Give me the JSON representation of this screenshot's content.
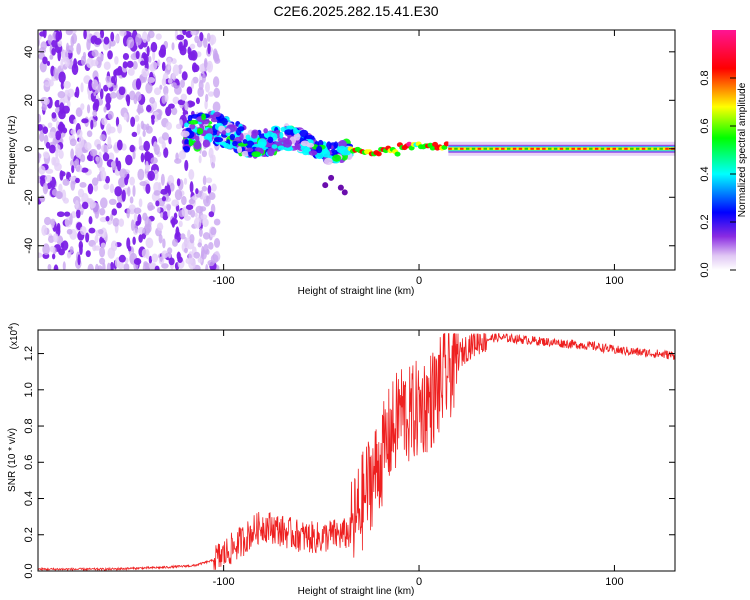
{
  "figure": {
    "title": "C2E6.2025.282.15.41.E30"
  },
  "chart_data": [
    {
      "type": "heatmap",
      "name": "spectrogram",
      "title": "C2E6.2025.282.15.41.E30",
      "xlabel": "Height of straight line (km)",
      "ylabel": "Frequency (Hz)",
      "xlim": [
        -195,
        131
      ],
      "ylim": [
        -50,
        49
      ],
      "xticks": [
        -100,
        0,
        100
      ],
      "yticks": [
        -40,
        -20,
        0,
        20,
        40
      ],
      "colorbar": {
        "label": "Normalized spectral amplitude",
        "range": [
          0,
          1
        ],
        "ticks": [
          0.0,
          0.2,
          0.4,
          0.6,
          0.8
        ],
        "tick_labels": [
          "0.0",
          "0.2",
          "0.4",
          "0.6",
          "0.8"
        ],
        "colormap": [
          "#ffffff",
          "#e2c8f4",
          "#8a2be2",
          "#0000ff",
          "#00ffff",
          "#00ff00",
          "#ffff00",
          "#ff0000",
          "#ff1493"
        ]
      },
      "regions": [
        {
          "description": "scattered low-amplitude noise",
          "x_range": [
            -195,
            -103
          ],
          "y_range": [
            -50,
            49
          ],
          "amplitude": 0.15
        },
        {
          "description": "irregular band around 0 Hz",
          "x_range": [
            -120,
            -35
          ],
          "y_range": [
            -10,
            14
          ],
          "amplitude": 0.45
        },
        {
          "description": "narrow line near 0 Hz",
          "x_range": [
            -35,
            15
          ],
          "y_range": [
            -3,
            3
          ],
          "amplitude": 0.8
        },
        {
          "description": "steady line at 0 Hz",
          "x_range": [
            15,
            131
          ],
          "y_range": [
            -2,
            2
          ],
          "amplitude": 0.95
        }
      ]
    },
    {
      "type": "line",
      "name": "snr",
      "xlabel": "Height of straight line (km)",
      "ylabel": "SNR (10 * v/v)",
      "multiplier_label": "(x10",
      "multiplier_exponent": "4",
      "xlim": [
        -195,
        131
      ],
      "ylim": [
        0,
        1.33
      ],
      "xticks": [
        -100,
        0,
        100
      ],
      "yticks": [
        0.0,
        0.2,
        0.4,
        0.6,
        0.8,
        1.0,
        1.2
      ],
      "ytick_labels": [
        "0.0",
        "0.2",
        "0.4",
        "0.6",
        "0.8",
        "1.0",
        "1.2"
      ],
      "color": "#ee2020",
      "series": [
        {
          "name": "SNR",
          "x": [
            -195,
            -160,
            -130,
            -115,
            -105,
            -100,
            -95,
            -90,
            -85,
            -80,
            -75,
            -70,
            -60,
            -50,
            -45,
            -40,
            -35,
            -30,
            -25,
            -22,
            -20,
            -15,
            -12,
            -10,
            -5,
            0,
            5,
            10,
            15,
            20,
            25,
            30,
            40,
            50,
            60,
            70,
            80,
            90,
            100,
            110,
            120,
            131
          ],
          "y": [
            0.01,
            0.01,
            0.02,
            0.03,
            0.06,
            0.09,
            0.13,
            0.17,
            0.22,
            0.25,
            0.24,
            0.22,
            0.19,
            0.18,
            0.2,
            0.2,
            0.21,
            0.35,
            0.5,
            0.55,
            0.6,
            0.75,
            0.8,
            0.9,
            0.85,
            0.9,
            0.93,
            1.0,
            1.1,
            1.18,
            1.24,
            1.27,
            1.29,
            1.28,
            1.27,
            1.26,
            1.25,
            1.24,
            1.22,
            1.21,
            1.2,
            1.19
          ]
        }
      ]
    }
  ]
}
